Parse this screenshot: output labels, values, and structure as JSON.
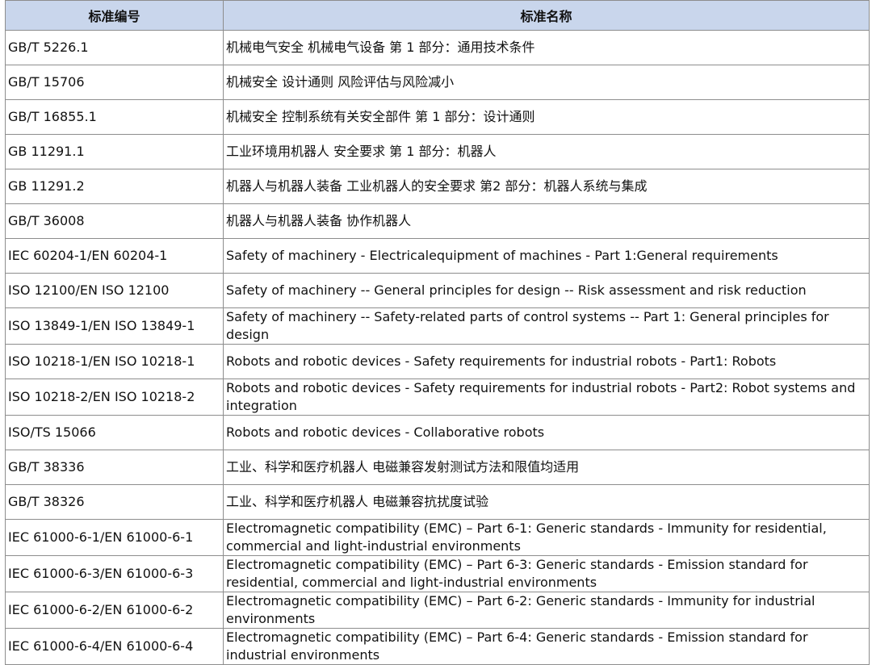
{
  "table": {
    "columns": [
      "标准编号",
      "标准名称"
    ],
    "rows": [
      [
        "GB/T 5226.1",
        "机械电气安全 机械电气设备 第 1 部分：通用技术条件"
      ],
      [
        "GB/T 15706",
        "机械安全 设计通则 风险评估与风险减小"
      ],
      [
        "GB/T 16855.1",
        "机械安全 控制系统有关安全部件 第 1 部分：设计通则"
      ],
      [
        "GB 11291.1",
        "工业环境用机器人 安全要求 第 1 部分：机器人"
      ],
      [
        "GB 11291.2",
        "机器人与机器人装备 工业机器人的安全要求 第2 部分：机器人系统与集成"
      ],
      [
        "GB/T 36008",
        "机器人与机器人装备 协作机器人"
      ],
      [
        "IEC 60204-1/EN 60204-1",
        "Safety of machinery - Electricalequipment of machines - Part 1:General requirements"
      ],
      [
        "ISO 12100/EN ISO 12100",
        "Safety of machinery -- General principles for design -- Risk assessment and risk reduction"
      ],
      [
        "ISO 13849-1/EN ISO 13849-1",
        "Safety of machinery -- Safety-related parts of control systems -- Part 1: General principles for design"
      ],
      [
        "ISO 10218-1/EN ISO 10218-1",
        "Robots and robotic devices - Safety requirements for industrial robots - Part1: Robots"
      ],
      [
        "ISO 10218-2/EN ISO 10218-2",
        "Robots and robotic devices - Safety requirements for industrial robots - Part2: Robot systems and integration"
      ],
      [
        "ISO/TS 15066",
        "Robots and robotic devices - Collaborative robots"
      ],
      [
        "GB/T 38336",
        "工业、科学和医疗机器人 电磁兼容发射测试方法和限值均适用"
      ],
      [
        "GB/T 38326",
        "工业、科学和医疗机器人 电磁兼容抗扰度试验"
      ],
      [
        "IEC 61000-6-1/EN 61000-6-1",
        "Electromagnetic compatibility (EMC) – Part 6-1: Generic standards - Immunity for residential, commercial and light-industrial environments"
      ],
      [
        "IEC 61000-6-3/EN 61000-6-3",
        "Electromagnetic compatibility (EMC) – Part 6-3: Generic standards - Emission standard for residential, commercial and light-industrial environments"
      ],
      [
        "IEC 61000-6-2/EN 61000-6-2",
        "Electromagnetic compatibility (EMC) – Part 6-2: Generic standards - Immunity for industrial environments"
      ],
      [
        "IEC 61000-6-4/EN 61000-6-4",
        "Electromagnetic compatibility (EMC) – Part 6-4: Generic standards - Emission standard for industrial environments"
      ]
    ]
  }
}
